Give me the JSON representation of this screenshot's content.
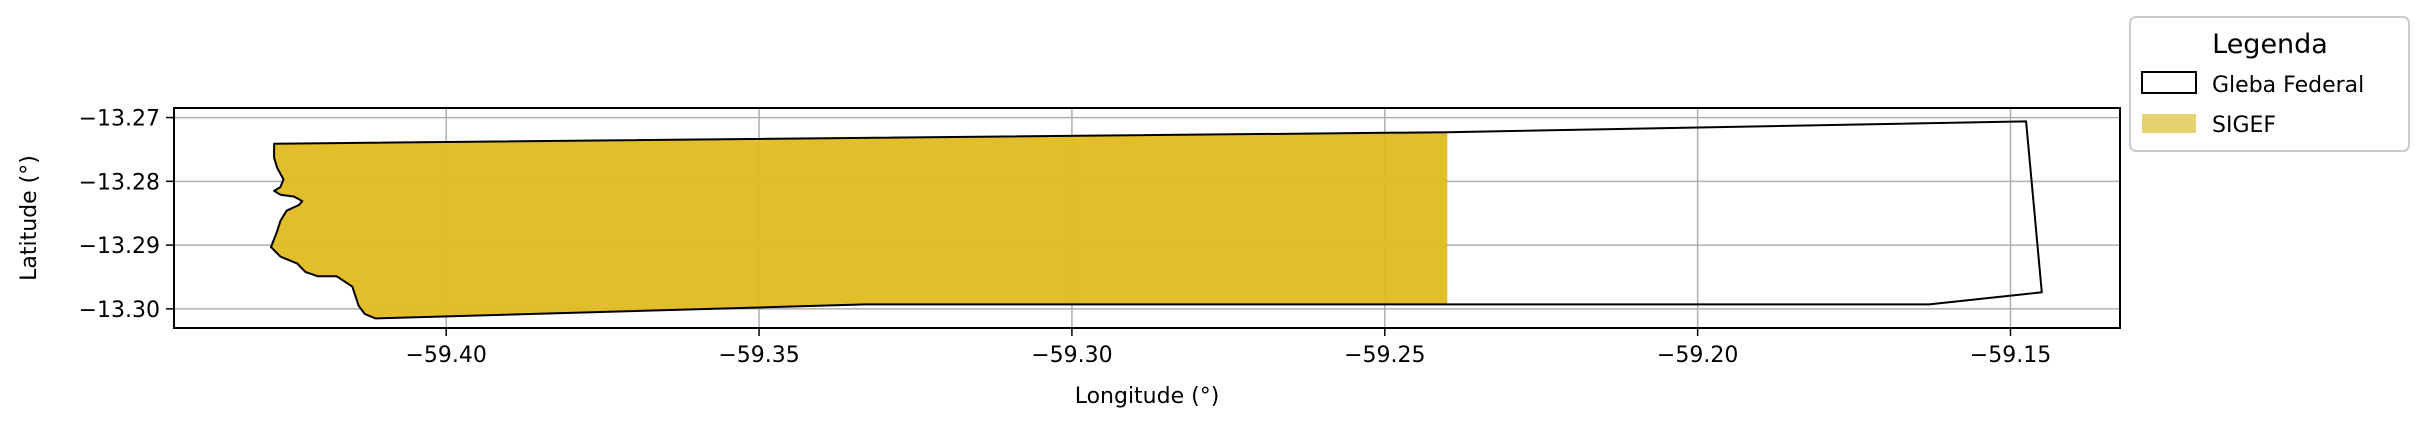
{
  "chart_data": {
    "type": "map",
    "xlabel": "Longitude (°)",
    "ylabel": "Latitude (°)",
    "xlim": [
      -59.4435,
      -59.1325
    ],
    "ylim": [
      -13.303,
      -13.2685
    ],
    "xticks": [
      -59.4,
      -59.35,
      -59.3,
      -59.25,
      -59.2,
      -59.15
    ],
    "xtick_labels": [
      "−59.40",
      "−59.35",
      "−59.30",
      "−59.25",
      "−59.20",
      "−59.15"
    ],
    "yticks": [
      -13.27,
      -13.28,
      -13.29,
      -13.3
    ],
    "ytick_labels": [
      "−13.27",
      "−13.28",
      "−13.29",
      "−13.30"
    ],
    "grid": true,
    "legend": {
      "title": "Legenda",
      "placement": "outside top-right",
      "entries": [
        {
          "label": "Gleba Federal",
          "style": "outline",
          "color": "#000000"
        },
        {
          "label": "SIGEF",
          "style": "fill",
          "color": "#e6d370"
        }
      ]
    },
    "layers": [
      {
        "name": "Gleba Federal",
        "kind": "outline",
        "color": "#000000",
        "points": [
          [
            -59.4275,
            -13.2741
          ],
          [
            -59.24,
            -13.2723
          ],
          [
            -59.1475,
            -13.2706
          ],
          [
            -59.145,
            -13.2974
          ],
          [
            -59.163,
            -13.2993
          ],
          [
            -59.333,
            -13.2993
          ],
          [
            -59.4113,
            -13.3015
          ],
          [
            -59.413,
            -13.3008
          ],
          [
            -59.414,
            -13.2995
          ],
          [
            -59.415,
            -13.2965
          ],
          [
            -59.4175,
            -13.2949
          ],
          [
            -59.4205,
            -13.2949
          ],
          [
            -59.4225,
            -13.2942
          ],
          [
            -59.4238,
            -13.2929
          ],
          [
            -59.4265,
            -13.2918
          ],
          [
            -59.428,
            -13.2903
          ],
          [
            -59.427,
            -13.2878
          ],
          [
            -59.4265,
            -13.2862
          ],
          [
            -59.4255,
            -13.2846
          ],
          [
            -59.4235,
            -13.2837
          ],
          [
            -59.423,
            -13.2831
          ],
          [
            -59.4243,
            -13.2824
          ],
          [
            -59.4265,
            -13.2821
          ],
          [
            -59.4275,
            -13.2815
          ],
          [
            -59.4265,
            -13.2809
          ],
          [
            -59.426,
            -13.2797
          ],
          [
            -59.427,
            -13.2779
          ],
          [
            -59.4275,
            -13.2763
          ]
        ]
      },
      {
        "name": "SIGEF",
        "kind": "fill",
        "color": "#dfbb1f",
        "points": [
          [
            -59.4275,
            -13.2741
          ],
          [
            -59.24,
            -13.2723
          ],
          [
            -59.24,
            -13.2993
          ],
          [
            -59.333,
            -13.2993
          ],
          [
            -59.4113,
            -13.3015
          ],
          [
            -59.413,
            -13.3008
          ],
          [
            -59.414,
            -13.2995
          ],
          [
            -59.415,
            -13.2965
          ],
          [
            -59.4175,
            -13.2949
          ],
          [
            -59.4205,
            -13.2949
          ],
          [
            -59.4225,
            -13.2942
          ],
          [
            -59.4238,
            -13.2929
          ],
          [
            -59.4265,
            -13.2918
          ],
          [
            -59.428,
            -13.2903
          ],
          [
            -59.427,
            -13.2878
          ],
          [
            -59.4265,
            -13.2862
          ],
          [
            -59.4255,
            -13.2846
          ],
          [
            -59.4235,
            -13.2837
          ],
          [
            -59.423,
            -13.2831
          ],
          [
            -59.4243,
            -13.2824
          ],
          [
            -59.4265,
            -13.2821
          ],
          [
            -59.4275,
            -13.2815
          ],
          [
            -59.4265,
            -13.2809
          ],
          [
            -59.426,
            -13.2797
          ],
          [
            -59.427,
            -13.2779
          ],
          [
            -59.4275,
            -13.2763
          ]
        ]
      }
    ]
  }
}
